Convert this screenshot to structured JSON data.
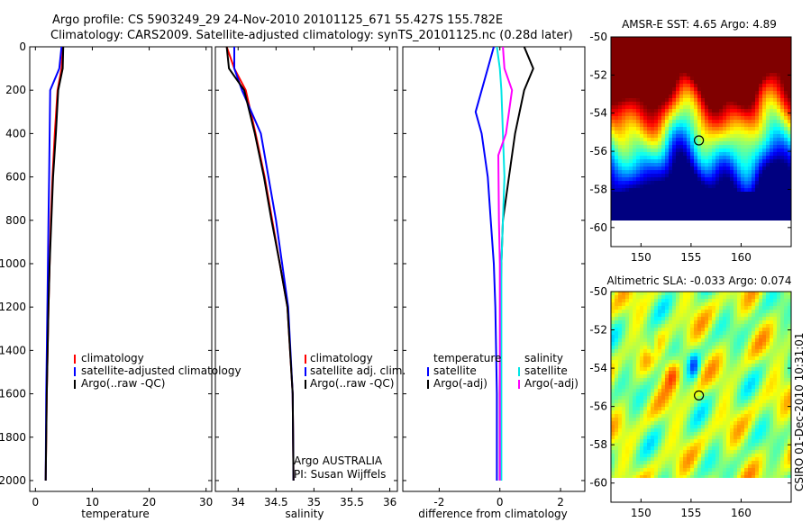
{
  "header": {
    "line1": "Argo profile: CS 5903249_29 24-Nov-2010 20101125_671 55.427S 155.782E",
    "line2": "Climatology: CARS2009. Satellite-adjusted climatology: synTS_20101125.nc (0.28d later)"
  },
  "side_label": "CSIRO 01-Dec-2010 10:31:01",
  "colors": {
    "red": "#ff0000",
    "blue": "#0000ff",
    "black": "#000000",
    "cyan": "#00e5e5",
    "magenta": "#ff00ff"
  },
  "chart_data": [
    {
      "type": "line",
      "panel": "temperature",
      "xlabel": "temperature",
      "ylabel": "",
      "xlim": [
        -1,
        31
      ],
      "ylim": [
        0,
        2050
      ],
      "y_reversed": true,
      "xticks": [
        0,
        10,
        20,
        30
      ],
      "yticks": [
        0,
        200,
        400,
        600,
        800,
        1000,
        1200,
        1400,
        1600,
        1800,
        2000
      ],
      "legend": {
        "placement": "bottom-right",
        "entries": [
          "climatology",
          "satellite-adjusted climatology",
          "Argo(..raw -QC)"
        ]
      },
      "series": [
        {
          "name": "climatology",
          "color": "red",
          "x": [
            4.8,
            4.6,
            3.9,
            3.4,
            3.0,
            2.7,
            2.5,
            2.3,
            2.0,
            1.8
          ],
          "y": [
            0,
            100,
            200,
            400,
            600,
            800,
            1000,
            1200,
            1600,
            2000
          ]
        },
        {
          "name": "satellite-adjusted climatology",
          "color": "blue",
          "x": [
            4.6,
            4.2,
            2.6,
            2.5,
            2.4,
            2.3,
            2.2,
            2.1,
            1.9,
            1.8
          ],
          "y": [
            0,
            100,
            200,
            400,
            600,
            800,
            1000,
            1200,
            1600,
            2000
          ]
        },
        {
          "name": "Argo(..raw -QC)",
          "color": "black",
          "x": [
            4.9,
            4.8,
            4.0,
            3.6,
            3.1,
            2.8,
            2.5,
            2.3,
            2.0,
            1.8
          ],
          "y": [
            0,
            100,
            200,
            400,
            600,
            800,
            1000,
            1200,
            1600,
            2000
          ]
        }
      ]
    },
    {
      "type": "line",
      "panel": "salinity",
      "xlabel": "salinity",
      "xlim": [
        33.7,
        36.1
      ],
      "ylim": [
        0,
        2050
      ],
      "y_reversed": true,
      "xticks": [
        34,
        34.5,
        35,
        35.5,
        36
      ],
      "legend": {
        "placement": "bottom-right",
        "entries": [
          "climatology",
          "satellite adj. clim.",
          "Argo(..raw -QC)"
        ]
      },
      "annotations": [
        "Argo AUSTRALIA",
        "PI: Susan Wijffels"
      ],
      "series": [
        {
          "name": "climatology",
          "color": "red",
          "x": [
            33.85,
            33.95,
            34.1,
            34.23,
            34.35,
            34.45,
            34.55,
            34.65,
            34.72,
            34.73
          ],
          "y": [
            0,
            100,
            200,
            400,
            600,
            800,
            1000,
            1200,
            1600,
            2000
          ]
        },
        {
          "name": "satellite adj. clim.",
          "color": "blue",
          "x": [
            33.95,
            33.95,
            34.05,
            34.3,
            34.4,
            34.5,
            34.58,
            34.66,
            34.72,
            34.73
          ],
          "y": [
            0,
            100,
            200,
            400,
            600,
            800,
            1000,
            1200,
            1600,
            2000
          ]
        },
        {
          "name": "Argo(..raw -QC)",
          "color": "black",
          "x": [
            33.85,
            33.88,
            34.08,
            34.22,
            34.34,
            34.44,
            34.55,
            34.65,
            34.72,
            34.73
          ],
          "y": [
            0,
            100,
            200,
            400,
            600,
            800,
            1000,
            1200,
            1600,
            2000
          ]
        }
      ]
    },
    {
      "type": "line",
      "panel": "difference",
      "xlabel": "difference from climatology",
      "xlim": [
        -3.2,
        2.8
      ],
      "ylim": [
        0,
        2050
      ],
      "y_reversed": true,
      "xticks": [
        -2,
        0,
        2
      ],
      "legend": {
        "placement": "bottom",
        "columns": [
          {
            "heading": "temperature",
            "entries": [
              "satellite",
              "Argo(-adj)"
            ]
          },
          {
            "heading": "salinity",
            "entries": [
              "satellite",
              "Argo(-adj)"
            ]
          }
        ]
      },
      "series": [
        {
          "name": "temperature satellite",
          "color": "blue",
          "x": [
            -0.2,
            -0.4,
            -0.8,
            -0.6,
            -0.4,
            -0.3,
            -0.2,
            -0.15,
            -0.1,
            -0.1
          ],
          "y": [
            0,
            100,
            300,
            400,
            600,
            800,
            1000,
            1200,
            1600,
            2000
          ]
        },
        {
          "name": "temperature Argo(-adj)",
          "color": "black",
          "x": [
            0.8,
            1.1,
            0.8,
            0.5,
            0.3,
            0.1,
            0.05,
            0.02,
            0.0,
            0.0
          ],
          "y": [
            0,
            100,
            200,
            400,
            600,
            800,
            1000,
            1200,
            1600,
            2000
          ]
        },
        {
          "name": "salinity satellite",
          "color": "cyan",
          "x": [
            -0.1,
            0.0,
            0.05,
            0.1,
            0.15,
            0.1,
            0.05,
            0.05,
            0.05,
            0.05
          ],
          "y": [
            0,
            100,
            200,
            400,
            600,
            800,
            1000,
            1200,
            1600,
            2000
          ]
        },
        {
          "name": "salinity Argo(-adj)",
          "color": "magenta",
          "x": [
            0.1,
            0.15,
            0.4,
            0.2,
            -0.05,
            -0.03,
            0.0,
            0.0,
            0.0,
            0.0
          ],
          "y": [
            0,
            100,
            200,
            400,
            500,
            800,
            1000,
            1200,
            1600,
            2000
          ]
        }
      ]
    },
    {
      "type": "heatmap",
      "panel": "sst-map",
      "title": "AMSR-E SST: 4.65 Argo: 4.89",
      "xlim": [
        147,
        165
      ],
      "ylim": [
        -61,
        -50
      ],
      "xticks": [
        150,
        155,
        160
      ],
      "yticks": [
        -50,
        -52,
        -54,
        -56,
        -58,
        -60
      ],
      "float_position": {
        "lon": 155.782,
        "lat": -55.427
      },
      "colormap": "jet"
    },
    {
      "type": "heatmap",
      "panel": "sla-map",
      "title": "Altimetric SLA: -0.033 Argo: 0.074",
      "xlim": [
        147,
        165
      ],
      "ylim": [
        -61,
        -50
      ],
      "xticks": [
        150,
        155,
        160
      ],
      "yticks": [
        -50,
        -52,
        -54,
        -56,
        -58,
        -60
      ],
      "float_position": {
        "lon": 155.782,
        "lat": -55.427
      },
      "colormap": "jet"
    }
  ]
}
